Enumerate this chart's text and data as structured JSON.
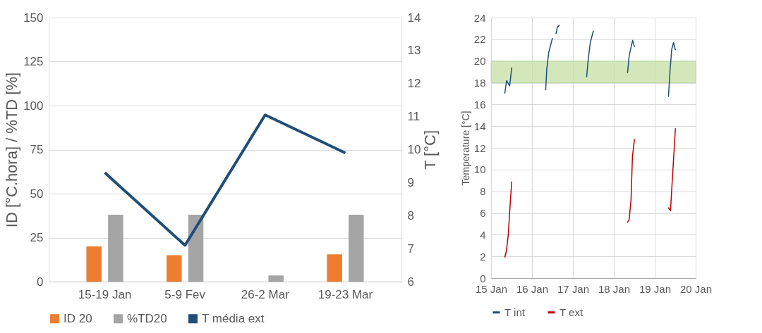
{
  "chart_data": [
    {
      "type": "bar",
      "categories": [
        "15-19 Jan",
        "5-9 Fev",
        "26-2 Mar",
        "19-23 Mar"
      ],
      "ylabel": "ID [°C.hora] / %TD [%]",
      "y2label": "T [°C]",
      "series": [
        {
          "name": "ID 20",
          "color": "#ed7d31",
          "values": [
            20,
            15,
            null,
            15.5
          ]
        },
        {
          "name": "%TD20",
          "color": "#a5a5a5",
          "values": [
            38,
            38,
            3.5,
            38
          ]
        },
        {
          "name": "T média ext",
          "color": "#1f4e79",
          "type": "line",
          "axis": "y2",
          "values": [
            9.3,
            7.1,
            11.05,
            9.9
          ]
        }
      ],
      "ylim": [
        0,
        150
      ],
      "yticks": [
        0,
        25,
        50,
        75,
        100,
        125,
        150
      ],
      "y2lim": [
        6,
        14
      ],
      "y2ticks": [
        6,
        7,
        8,
        9,
        10,
        11,
        12,
        13,
        14
      ],
      "grid": "y",
      "legend": "bottom"
    },
    {
      "type": "line",
      "ylabel": "Temperature [°C]",
      "series": [
        {
          "name": "T int",
          "color": "#1f4e79",
          "x": [
            "--01-15T08:02",
            "--01-15T09:07",
            "--01-15T10:55",
            "--01-15T12:07",
            "--01-15T21:36",
            "--01-16T08:02",
            "--01-16T08:38",
            "--01-16T09:50",
            "--01-16T12:00",
            "--01-16T12:58",
            "--01-16T14:02",
            "--01-16T14:53",
            "--01-16T16:05",
            "--01-17T00:00",
            "--01-17T08:02",
            "--01-17T09:00",
            "--01-17T10:12",
            "--01-17T12:00",
            "--01-17T21:36",
            "--01-18T08:02",
            "--01-18T09:00",
            "--01-18T11:02",
            "--01-18T12:07",
            "--01-18T21:36",
            "--01-19T08:02",
            "--01-19T09:00",
            "--01-19T09:58",
            "--01-19T11:02",
            "--01-19T12:07"
          ],
          "values": [
            17.0,
            18.2,
            17.7,
            19.4,
            null,
            17.3,
            19.2,
            20.8,
            22.1,
            null,
            22.5,
            23.1,
            23.3,
            null,
            18.5,
            20.2,
            21.7,
            22.8,
            null,
            18.9,
            20.5,
            21.9,
            21.3,
            null,
            16.7,
            19.2,
            21.1,
            21.7,
            21.0
          ]
        },
        {
          "name": "T ext",
          "color": "#c00000",
          "x": [
            "--01-15T08:02",
            "--01-15T09:00",
            "--01-15T10:05",
            "--01-15T11:02",
            "--01-15T12:07",
            "--01-17T00:00",
            "--01-18T07:55",
            "--01-18T09:00",
            "--01-18T10:05",
            "--01-18T10:55",
            "--01-18T12:07",
            "--01-18T21:36",
            "--01-19T07:55",
            "--01-19T09:14",
            "--01-19T10:05",
            "--01-19T12:07"
          ],
          "values": [
            1.9,
            2.5,
            4.0,
            6.4,
            8.9,
            null,
            5.1,
            5.4,
            7.2,
            11.2,
            12.8,
            null,
            6.5,
            6.2,
            8.5,
            13.8
          ]
        }
      ],
      "xlim": [
        "--01-15",
        "--01-20"
      ],
      "xticks": [
        {
          "value": "--01-15",
          "label": "15 Jan"
        },
        {
          "value": "--01-16",
          "label": "16 Jan"
        },
        {
          "value": "--01-17",
          "label": "17 Jan"
        },
        {
          "value": "--01-18",
          "label": "18 Jan"
        },
        {
          "value": "--01-19",
          "label": "19 Jan"
        },
        {
          "value": "--01-20",
          "label": "20 Jan"
        }
      ],
      "ylim": [
        0,
        24
      ],
      "yticks": [
        0,
        2,
        4,
        6,
        8,
        10,
        12,
        14,
        16,
        18,
        20,
        22,
        24
      ],
      "bands": [
        {
          "axis": "y",
          "from": 18,
          "to": 20,
          "color": "#c5e0a5"
        }
      ],
      "grid": true,
      "legend": "bottom"
    }
  ]
}
